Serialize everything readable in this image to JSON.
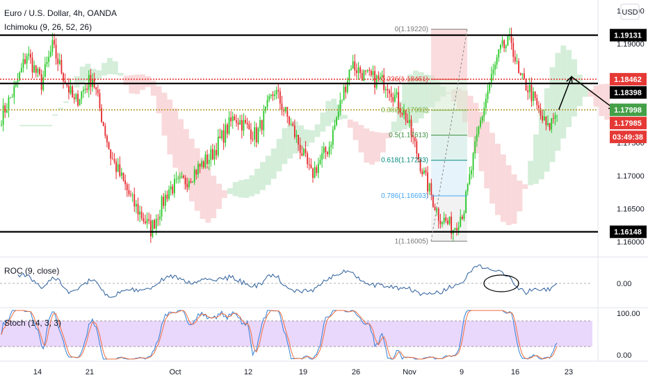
{
  "header": {
    "symbol_title": "Euro / U.S. Dollar, 4h, OANDA",
    "indicator": "Ichimoku (9, 26, 52, 26)",
    "currency_button": "USD"
  },
  "colors": {
    "up": "#26c826",
    "down": "#e5272b",
    "cloud_bull": "#c9ead0",
    "cloud_bear": "#f8cfd2",
    "roc_line": "#2a5c9a",
    "stoch_k": "#2e7fd6",
    "stoch_d": "#ef6c3c",
    "stoch_band": "#e3c9fb",
    "hline": "#000000",
    "dotted_red": "#e53935",
    "dotted_olive": "#b59a2e"
  },
  "price_axis": {
    "ticks": [
      "1.19500",
      "1.19000",
      "1.18500",
      "1.18000",
      "1.17500",
      "1.17000",
      "1.16500",
      "1.16000"
    ]
  },
  "price_tags": [
    {
      "value": "1.19131",
      "bg": "#000000",
      "fg": "#ffffff"
    },
    {
      "value": "1.18462",
      "bg": "#e53935",
      "fg": "#ffffff"
    },
    {
      "value": "1.18398",
      "bg": "#000000",
      "fg": "#ffffff"
    },
    {
      "value": "1.17998",
      "bg": "#43a047",
      "fg": "#ffffff"
    },
    {
      "value": "1.17985",
      "bg": "#e53935",
      "fg": "#ffffff"
    },
    {
      "value": "03:49:38",
      "bg": "#e53935",
      "fg": "#ffffff"
    },
    {
      "value": "1.16148",
      "bg": "#000000",
      "fg": "#ffffff"
    }
  ],
  "fib_levels": [
    {
      "label": "0(1.19220)",
      "price": 1.1922,
      "color": "#777777"
    },
    {
      "label": "0.236(1.18461)",
      "price": 1.18461,
      "color": "#e53935"
    },
    {
      "label": "0.382(1.17992)",
      "price": 1.17992,
      "color": "#7cb342"
    },
    {
      "label": "0.5(1.17613)",
      "price": 1.17613,
      "color": "#388e3c"
    },
    {
      "label": "0.618(1.17233)",
      "price": 1.17233,
      "color": "#00897b"
    },
    {
      "label": "0.786(1.16693)",
      "price": 1.16693,
      "color": "#42a5f5"
    },
    {
      "label": "1(1.16005)",
      "price": 1.16005,
      "color": "#777777"
    }
  ],
  "roc_panel": {
    "label": "ROC (9, close)",
    "tick": "0.00"
  },
  "stoch_panel": {
    "label": "Stoch (14, 3, 3)",
    "ticks": [
      "100.00",
      "0.00"
    ]
  },
  "time_axis": {
    "labels": [
      "14",
      "21",
      "Oct",
      "12",
      "19",
      "26",
      "Nov",
      "9",
      "16",
      "23"
    ]
  },
  "chart_data": {
    "type": "candlestick",
    "title": "Euro / U.S. Dollar, 4h, OANDA",
    "ylim": [
      1.1585,
      1.1958
    ],
    "horizontal_levels": [
      1.19131,
      1.18398,
      1.16148
    ],
    "dotted_levels": [
      1.18462,
      1.17998
    ],
    "key_points": [
      {
        "x": 0,
        "price": 1.179
      },
      {
        "x": 8,
        "price": 1.1835
      },
      {
        "x": 14,
        "price": 1.1885
      },
      {
        "x": 22,
        "price": 1.184
      },
      {
        "x": 28,
        "price": 1.1895
      },
      {
        "x": 40,
        "price": 1.181
      },
      {
        "x": 50,
        "price": 1.185
      },
      {
        "x": 60,
        "price": 1.173
      },
      {
        "x": 72,
        "price": 1.166
      },
      {
        "x": 82,
        "price": 1.1618
      },
      {
        "x": 92,
        "price": 1.168
      },
      {
        "x": 100,
        "price": 1.169
      },
      {
        "x": 115,
        "price": 1.173
      },
      {
        "x": 128,
        "price": 1.179
      },
      {
        "x": 140,
        "price": 1.176
      },
      {
        "x": 150,
        "price": 1.183
      },
      {
        "x": 160,
        "price": 1.177
      },
      {
        "x": 170,
        "price": 1.17
      },
      {
        "x": 180,
        "price": 1.1745
      },
      {
        "x": 192,
        "price": 1.187
      },
      {
        "x": 200,
        "price": 1.185
      },
      {
        "x": 212,
        "price": 1.184
      },
      {
        "x": 222,
        "price": 1.179
      },
      {
        "x": 232,
        "price": 1.17
      },
      {
        "x": 240,
        "price": 1.164
      },
      {
        "x": 248,
        "price": 1.162
      },
      {
        "x": 254,
        "price": 1.165
      },
      {
        "x": 262,
        "price": 1.177
      },
      {
        "x": 268,
        "price": 1.184
      },
      {
        "x": 274,
        "price": 1.189
      },
      {
        "x": 280,
        "price": 1.1905
      },
      {
        "x": 284,
        "price": 1.185
      },
      {
        "x": 290,
        "price": 1.183
      },
      {
        "x": 296,
        "price": 1.179
      },
      {
        "x": 300,
        "price": 1.177
      },
      {
        "x": 305,
        "price": 1.18
      }
    ],
    "drawn_arrow": [
      {
        "x": 306,
        "price": 1.18
      },
      {
        "x": 313,
        "price": 1.185
      },
      {
        "x": 337,
        "price": 1.18
      }
    ]
  }
}
